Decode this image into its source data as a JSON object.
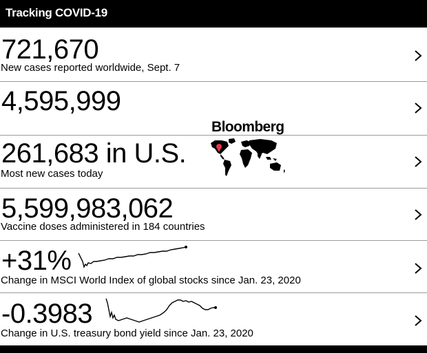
{
  "header": {
    "title": "Tracking COVID-19"
  },
  "brand": {
    "name": "Bloomberg"
  },
  "rows": [
    {
      "value": "721,670",
      "caption": "New cases reported worldwide, Sept. 7"
    },
    {
      "value": "4,595,999",
      "caption": ""
    },
    {
      "value": "261,683 in U.S.",
      "caption": "Most new cases today"
    },
    {
      "value": "5,599,983,062",
      "caption": "Vaccine doses administered in 184 countries"
    },
    {
      "value": "+31%",
      "caption": "Change in MSCI World Index of global stocks since Jan. 23, 2020"
    },
    {
      "value": "-0.3983",
      "caption": "Change in U.S. treasury bond yield since Jan. 23, 2020"
    }
  ],
  "icons": {
    "row_chevron": "chevron-right-icon",
    "map": "world-map-icon",
    "marker": "map-marker-icon"
  },
  "colors": {
    "header_bg": "#000000",
    "marker": "#e8334e",
    "divider": "#9a9a9a"
  }
}
